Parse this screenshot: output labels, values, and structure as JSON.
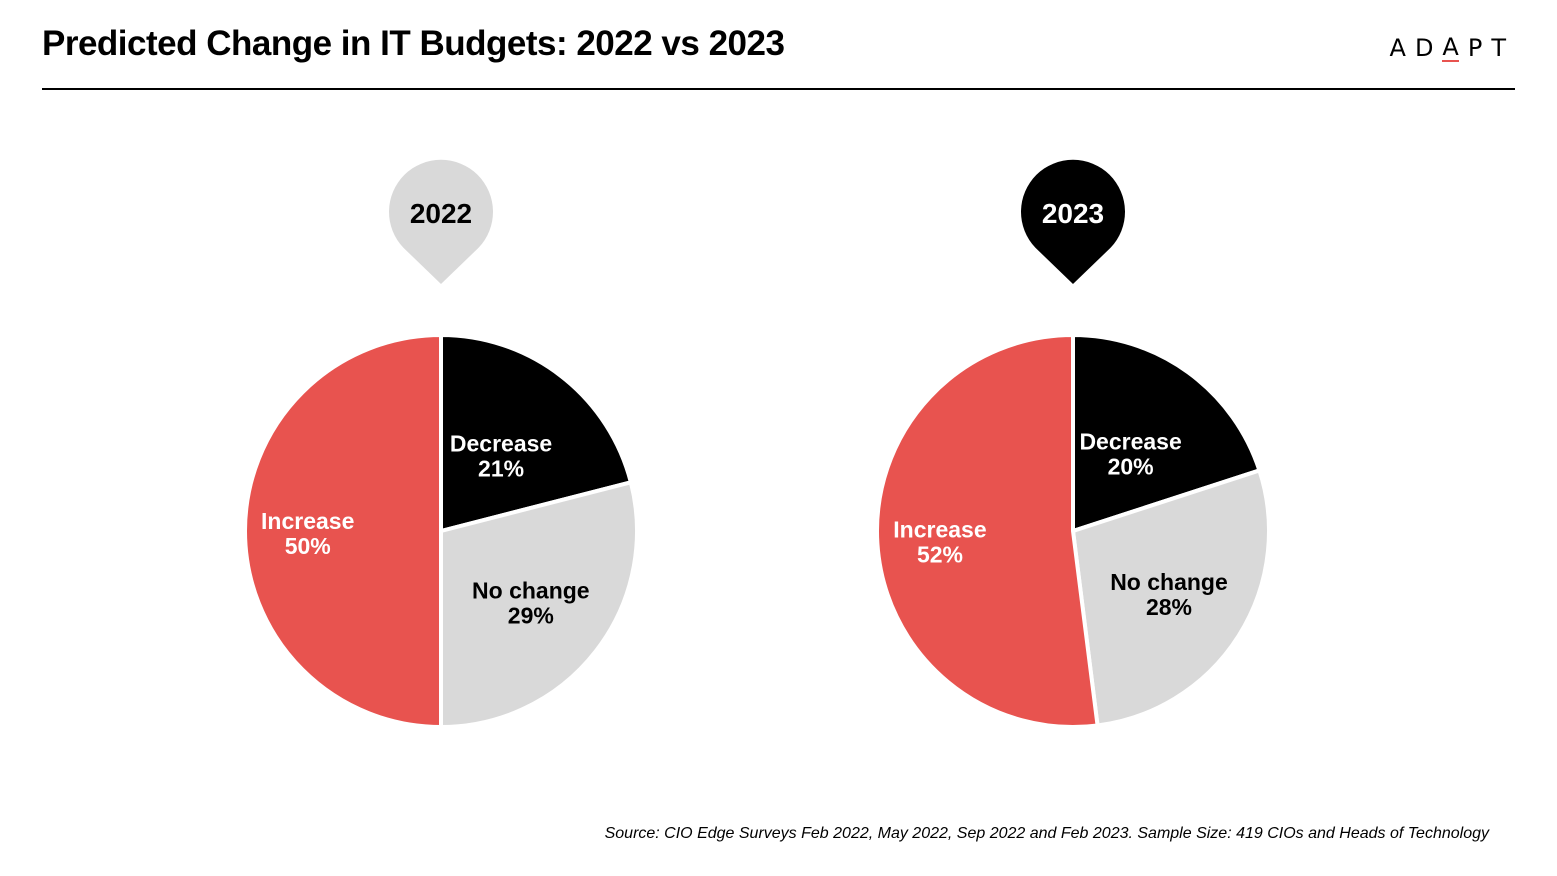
{
  "title": "Predicted Change in IT Budgets: 2022 vs 2023",
  "logo": {
    "letters": [
      "A",
      "D",
      "A",
      "P",
      "T"
    ],
    "accent_color": "#e8534f"
  },
  "source": "Source: CIO Edge Surveys Feb 2022, May 2022, Sep 2022 and Feb 2023. Sample Size: 419 CIOs and Heads of Technology",
  "colors": {
    "decrease": "#000000",
    "no_change": "#d9d9d9",
    "increase": "#e8534f",
    "badge_2022": "#d9d9d9",
    "badge_2023": "#000000"
  },
  "chart_data": [
    {
      "type": "pie",
      "title": "2022",
      "labels": [
        "Decrease",
        "No change",
        "Increase"
      ],
      "values": [
        21,
        29,
        50
      ],
      "value_labels": [
        "21%",
        "29%",
        "50%"
      ],
      "colors": [
        "#000000",
        "#d9d9d9",
        "#e8534f"
      ],
      "label_colors": [
        "#ffffff",
        "#000000",
        "#ffffff"
      ]
    },
    {
      "type": "pie",
      "title": "2023",
      "labels": [
        "Decrease",
        "No change",
        "Increase"
      ],
      "values": [
        20,
        28,
        52
      ],
      "value_labels": [
        "20%",
        "28%",
        "52%"
      ],
      "colors": [
        "#000000",
        "#d9d9d9",
        "#e8534f"
      ],
      "label_colors": [
        "#ffffff",
        "#000000",
        "#ffffff"
      ]
    }
  ]
}
